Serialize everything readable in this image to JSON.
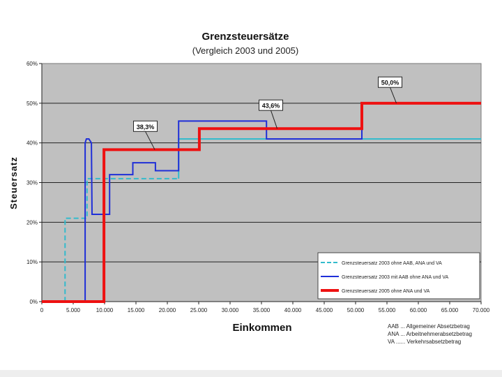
{
  "chart_data": {
    "type": "line",
    "title": "Grenzsteuersätze",
    "subtitle": "(Vergleich 2003 und 2005)",
    "xlabel": "Einkommen",
    "ylabel": "Steuersatz",
    "xlim": [
      0,
      70000
    ],
    "ylim": [
      0,
      60
    ],
    "x_ticks": [
      0,
      5000,
      10000,
      15000,
      20000,
      25000,
      30000,
      35000,
      40000,
      45000,
      50000,
      55000,
      60000,
      65000,
      70000
    ],
    "x_tick_labels": [
      "0",
      "5.000",
      "10.000",
      "15.000",
      "20.000",
      "25.000",
      "30.000",
      "35.000",
      "40.000",
      "45.000",
      "50.000",
      "55.000",
      "60.000",
      "65.000",
      "70.000"
    ],
    "y_ticks": [
      0,
      10,
      20,
      30,
      40,
      50,
      60
    ],
    "y_tick_labels": [
      "0%",
      "10%",
      "20%",
      "30%",
      "40%",
      "50%",
      "60%"
    ],
    "grid": "horizontal",
    "plot_background": "#c0c0c0",
    "legend_position": "bottom-right",
    "series": [
      {
        "name": "Grenzsteuersatz 2003 ohne AAB, ANA und VA",
        "color": "#33bbcc",
        "style": "dashed-then-solid",
        "x": [
          0,
          3700,
          3700,
          7200,
          7200,
          21800,
          21800,
          70000
        ],
        "y": [
          0,
          0,
          21,
          21,
          31,
          31,
          41,
          41
        ]
      },
      {
        "name": "Grenzsteuersatz 2003 mit AAB ohne ANA und VA",
        "color": "#1f2fd8",
        "style": "solid",
        "x": [
          6900,
          6900,
          7100,
          7500,
          7900,
          8000,
          8000,
          10800,
          10800,
          14500,
          14500,
          18100,
          18100,
          21800,
          21800,
          35800,
          35800,
          51000,
          51000
        ],
        "y": [
          0,
          40,
          41,
          41,
          40,
          22,
          22,
          22,
          32,
          32,
          35,
          35,
          33,
          33,
          45.5,
          45.5,
          41,
          41,
          50
        ]
      },
      {
        "name": "Grenzsteuersatz 2005 ohne ANA und VA",
        "color": "#ee1111",
        "style": "solid",
        "x": [
          0,
          9900,
          9900,
          25100,
          25100,
          51000,
          51000,
          70000
        ],
        "y": [
          0,
          0,
          38.3,
          38.3,
          43.6,
          43.6,
          50,
          50
        ]
      }
    ],
    "annotations": [
      {
        "text": "38,3%",
        "x": 18000,
        "y": 38.3,
        "label_x": 16500,
        "label_y": 44.2
      },
      {
        "text": "43,6%",
        "x": 37500,
        "y": 43.6,
        "label_x": 36500,
        "label_y": 49.5
      },
      {
        "text": "50,0%",
        "x": 56500,
        "y": 50,
        "label_x": 55500,
        "label_y": 55.3
      }
    ],
    "footnotes": [
      "AAB ... Allgemeiner Absetzbetrag",
      "ANA ... Arbeitnehmerabsetzbetrag",
      "VA ...... Verkehrsabsetzbetrag"
    ]
  }
}
